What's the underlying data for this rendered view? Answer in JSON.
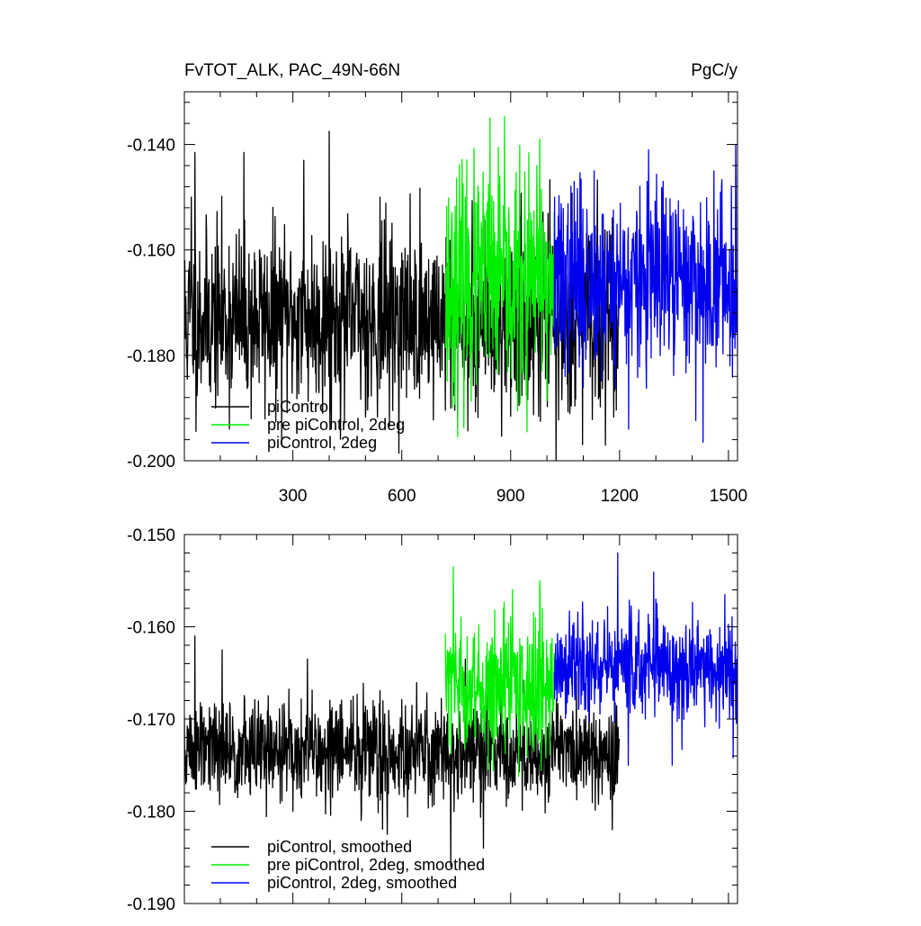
{
  "chart_data": [
    {
      "type": "line",
      "title": "FvTOT_ALK, PAC_49N-66N",
      "units": "PgC/y",
      "xlim": [
        1,
        1525
      ],
      "ylim": [
        -0.2,
        -0.13
      ],
      "xticks": [
        300,
        600,
        900,
        1200,
        1500
      ],
      "yticks": [
        -0.14,
        -0.16,
        -0.18,
        -0.2
      ],
      "ytick_labels": [
        "-0.140",
        "-0.160",
        "-0.180",
        "-0.200"
      ],
      "legend_position": "bottom-left",
      "series": [
        {
          "name": "piControl",
          "color": "#000000",
          "x_start": 1,
          "x_end": 1200,
          "mean": -0.173,
          "spread": 0.0085,
          "seed": 11,
          "peaks": [
            [
              20,
              -0.15
            ],
            [
              30,
              -0.1415
            ],
            [
              165,
              -0.1415
            ],
            [
              330,
              -0.143
            ],
            [
              400,
              -0.1375
            ],
            [
              540,
              -0.15
            ],
            [
              735,
              -0.19
            ],
            [
              1025,
              -0.2
            ]
          ]
        },
        {
          "name": "pre piControl, 2deg",
          "color": "#00ee00",
          "x_start": 720,
          "x_end": 1020,
          "mean": -0.167,
          "spread": 0.0105,
          "seed": 23,
          "peaks": [
            [
              775,
              -0.15
            ],
            [
              812,
              -0.149
            ],
            [
              843,
              -0.135
            ],
            [
              870,
              -0.146
            ],
            [
              945,
              -0.1945
            ],
            [
              980,
              -0.139
            ]
          ]
        },
        {
          "name": "piControl, 2deg",
          "color": "#0000ee",
          "x_start": 1020,
          "x_end": 1525,
          "mean": -0.166,
          "spread": 0.0085,
          "seed": 37,
          "peaks": [
            [
              1075,
              -0.147
            ],
            [
              1130,
              -0.145
            ],
            [
              1225,
              -0.194
            ],
            [
              1280,
              -0.141
            ],
            [
              1320,
              -0.147
            ],
            [
              1430,
              -0.1965
            ],
            [
              1460,
              -0.145
            ],
            [
              1520,
              -0.14
            ]
          ]
        }
      ]
    },
    {
      "type": "line",
      "title": "",
      "xlim": [
        1,
        1525
      ],
      "ylim": [
        -0.19,
        -0.15
      ],
      "xticks": [
        300,
        600,
        900,
        1200,
        1500
      ],
      "yticks": [
        -0.15,
        -0.16,
        -0.17,
        -0.18,
        -0.19
      ],
      "ytick_labels": [
        "-0.150",
        "-0.160",
        "-0.170",
        "-0.180",
        "-0.190"
      ],
      "legend_position": "bottom-left",
      "series": [
        {
          "name": "piControl, smoothed",
          "color": "#000000",
          "x_start": 1,
          "x_end": 1200,
          "mean": -0.1735,
          "spread": 0.0028,
          "seed": 51,
          "peaks": [
            [
              30,
              -0.161
            ],
            [
              105,
              -0.1625
            ],
            [
              340,
              -0.1635
            ],
            [
              488,
              -0.181
            ],
            [
              560,
              -0.1825
            ],
            [
              735,
              -0.186
            ],
            [
              775,
              -0.1635
            ],
            [
              825,
              -0.184
            ],
            [
              1180,
              -0.182
            ]
          ]
        },
        {
          "name": "pre piControl, 2deg, smoothed",
          "color": "#00ee00",
          "x_start": 720,
          "x_end": 1020,
          "mean": -0.1665,
          "spread": 0.0035,
          "seed": 63,
          "peaks": [
            [
              730,
              -0.1628
            ],
            [
              742,
              -0.1535
            ],
            [
              775,
              -0.1665
            ],
            [
              880,
              -0.158
            ],
            [
              945,
              -0.174
            ],
            [
              980,
              -0.155
            ]
          ]
        },
        {
          "name": "piControl, 2deg, smoothed",
          "color": "#0000ee",
          "x_start": 1020,
          "x_end": 1525,
          "mean": -0.1645,
          "spread": 0.003,
          "seed": 77,
          "peaks": [
            [
              1140,
              -0.1595
            ],
            [
              1195,
              -0.152
            ],
            [
              1300,
              -0.157
            ],
            [
              1345,
              -0.175
            ],
            [
              1490,
              -0.1565
            ],
            [
              1520,
              -0.17
            ]
          ]
        }
      ]
    }
  ]
}
